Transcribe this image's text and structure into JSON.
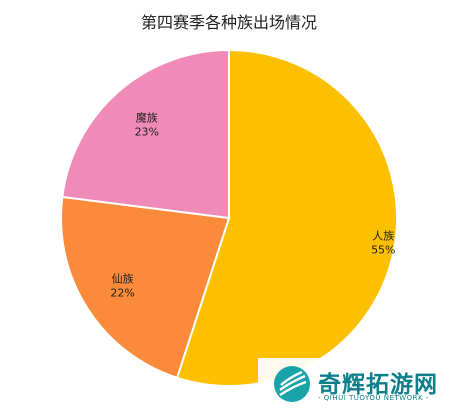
{
  "chart_data": {
    "type": "pie",
    "title": "第四赛季各种族出场情况",
    "categories": [
      "人族",
      "仙族",
      "魔族"
    ],
    "values": [
      55,
      22,
      23
    ],
    "labels": [
      "55%",
      "22%",
      "23%"
    ],
    "colors": [
      "#fcc000",
      "#fb8b3a",
      "#ef8bb6"
    ]
  },
  "watermark": {
    "name": "奇辉拓游网",
    "subtitle": "- QIHUI TUOYOU NETWORK -"
  }
}
